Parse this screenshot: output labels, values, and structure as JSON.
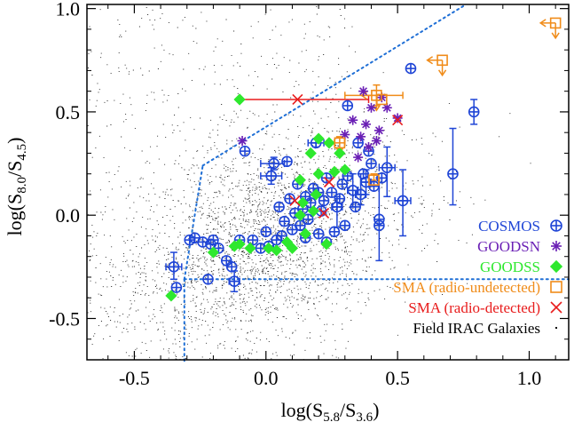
{
  "chart_data": {
    "type": "scatter",
    "title": "",
    "xlabel": {
      "pre": "log(S",
      "sub1": "5.8",
      "mid": "/S",
      "sub2": "3.6",
      "post": ")"
    },
    "ylabel": {
      "pre": "log(S",
      "sub1": "8.0",
      "mid": "/S",
      "sub2": "4.5",
      "post": ")"
    },
    "xlim": [
      -0.68,
      1.15
    ],
    "ylim": [
      -0.7,
      1.02
    ],
    "xticks": [
      {
        "v": -0.5,
        "label": "-0.5"
      },
      {
        "v": 0.0,
        "label": "0.0"
      },
      {
        "v": 0.5,
        "label": "0.5"
      },
      {
        "v": 1.0,
        "label": "1.0"
      }
    ],
    "yticks": [
      {
        "v": -0.5,
        "label": "-0.5"
      },
      {
        "v": 0.0,
        "label": "0.0"
      },
      {
        "v": 0.5,
        "label": "0.5"
      },
      {
        "v": 1.0,
        "label": "1.0"
      }
    ],
    "wedge_lines": [
      {
        "x": [
          -0.31,
          1.15
        ],
        "y": [
          -0.31,
          -0.31
        ]
      },
      {
        "x": [
          -0.31,
          -0.31
        ],
        "y": [
          -0.31,
          -0.72
        ]
      },
      {
        "x": [
          -0.31,
          -0.24
        ],
        "y": [
          -0.31,
          0.24
        ]
      },
      {
        "x": [
          -0.24,
          0.76
        ],
        "y": [
          0.24,
          1.02
        ]
      }
    ],
    "legend": {
      "position": "bottom-right",
      "entries": [
        {
          "label": "COSMOS",
          "color": "#1f45d6",
          "marker": "circle-plus"
        },
        {
          "label": "GOODSN",
          "color": "#6a1fb5",
          "marker": "asterisk"
        },
        {
          "label": "GOODSS",
          "color": "#2ee82e",
          "marker": "diamond"
        },
        {
          "label": "SMA (radio-undetected)",
          "color": "#f08c1a",
          "marker": "square"
        },
        {
          "label": "SMA (radio-detected)",
          "color": "#e81c1c",
          "marker": "x"
        },
        {
          "label": "Field IRAC Galaxies",
          "color": "#000000",
          "marker": "dot"
        }
      ]
    },
    "field_cloud": {
      "center": [
        0.0,
        -0.12
      ],
      "spread": [
        0.28,
        0.24
      ],
      "count": 3200
    },
    "series": [
      {
        "name": "COSMOS",
        "color": "#1f45d6",
        "marker": "circle-plus",
        "points": [
          [
            0.55,
            0.71
          ],
          [
            0.79,
            0.5
          ],
          [
            0.71,
            0.2
          ],
          [
            0.52,
            0.07
          ],
          [
            0.46,
            0.23
          ],
          [
            0.44,
            0.18
          ],
          [
            0.4,
            0.25
          ],
          [
            0.38,
            0.16
          ],
          [
            0.36,
            0.1
          ],
          [
            0.33,
            0.12
          ],
          [
            0.31,
            0.19
          ],
          [
            0.31,
            0.53
          ],
          [
            0.29,
            0.15
          ],
          [
            0.28,
            0.08
          ],
          [
            0.27,
            0.04
          ],
          [
            0.25,
            0.11
          ],
          [
            0.23,
            0.18
          ],
          [
            0.22,
            0.07
          ],
          [
            0.21,
            0.02
          ],
          [
            0.2,
            0.11
          ],
          [
            0.19,
            0.35
          ],
          [
            0.18,
            0.13
          ],
          [
            0.17,
            0.06
          ],
          [
            0.16,
            -0.02
          ],
          [
            0.15,
            0.09
          ],
          [
            0.14,
            0.03
          ],
          [
            0.13,
            -0.05
          ],
          [
            0.12,
            0.15
          ],
          [
            0.11,
            0.01
          ],
          [
            0.1,
            -0.07
          ],
          [
            0.09,
            0.08
          ],
          [
            0.08,
            0.26
          ],
          [
            0.07,
            -0.03
          ],
          [
            0.06,
            -0.1
          ],
          [
            0.05,
            0.04
          ],
          [
            0.04,
            -0.12
          ],
          [
            0.03,
            0.25
          ],
          [
            0.02,
            0.19
          ],
          [
            0.01,
            -0.15
          ],
          [
            0.0,
            -0.08
          ],
          [
            -0.02,
            -0.16
          ],
          [
            -0.05,
            -0.12
          ],
          [
            -0.08,
            0.31
          ],
          [
            -0.1,
            -0.12
          ],
          [
            -0.12,
            -0.32
          ],
          [
            -0.13,
            -0.25
          ],
          [
            -0.15,
            -0.22
          ],
          [
            -0.18,
            -0.16
          ],
          [
            -0.2,
            -0.12
          ],
          [
            -0.22,
            -0.31
          ],
          [
            -0.24,
            -0.13
          ],
          [
            -0.27,
            -0.11
          ],
          [
            -0.29,
            -0.12
          ],
          [
            -0.35,
            -0.25
          ],
          [
            -0.34,
            -0.35
          ],
          [
            -0.21,
            -0.14
          ],
          [
            0.37,
            0.2
          ],
          [
            0.41,
            0.14
          ],
          [
            0.43,
            -0.05
          ],
          [
            0.43,
            -0.02
          ],
          [
            0.26,
            -0.08
          ],
          [
            0.3,
            -0.05
          ],
          [
            0.34,
            0.04
          ],
          [
            0.2,
            -0.09
          ],
          [
            0.15,
            -0.11
          ],
          [
            0.23,
            -0.13
          ],
          [
            0.35,
            0.35
          ],
          [
            0.39,
            0.31
          ]
        ]
      },
      {
        "name": "GOODSN",
        "color": "#6a1fb5",
        "marker": "asterisk",
        "points": [
          [
            0.37,
            0.6
          ],
          [
            0.44,
            0.57
          ],
          [
            0.46,
            0.52
          ],
          [
            0.4,
            0.52
          ],
          [
            0.33,
            0.46
          ],
          [
            0.38,
            0.44
          ],
          [
            0.43,
            0.41
          ],
          [
            0.36,
            0.38
          ],
          [
            0.42,
            0.36
          ],
          [
            0.39,
            0.33
          ],
          [
            0.5,
            0.47
          ],
          [
            0.3,
            0.39
          ],
          [
            -0.09,
            0.36
          ],
          [
            0.35,
            0.28
          ]
        ]
      },
      {
        "name": "GOODSS",
        "color": "#2ee82e",
        "marker": "diamond",
        "points": [
          [
            -0.1,
            0.56
          ],
          [
            0.2,
            0.37
          ],
          [
            0.24,
            0.35
          ],
          [
            0.17,
            0.3
          ],
          [
            0.28,
            0.3
          ],
          [
            0.26,
            0.21
          ],
          [
            0.3,
            0.22
          ],
          [
            0.2,
            0.2
          ],
          [
            0.13,
            0.17
          ],
          [
            0.19,
            0.1
          ],
          [
            0.14,
            0.06
          ],
          [
            0.18,
            0.02
          ],
          [
            0.13,
            0.0
          ],
          [
            0.15,
            -0.09
          ],
          [
            0.08,
            -0.13
          ],
          [
            0.01,
            -0.16
          ],
          [
            0.04,
            -0.17
          ],
          [
            -0.06,
            -0.16
          ],
          [
            -0.1,
            -0.14
          ],
          [
            -0.12,
            -0.15
          ],
          [
            -0.2,
            -0.18
          ],
          [
            -0.36,
            -0.39
          ],
          [
            0.1,
            -0.16
          ],
          [
            0.23,
            -0.14
          ]
        ]
      },
      {
        "name": "SMA (radio-undetected)",
        "color": "#f08c1a",
        "marker": "square",
        "points": [
          [
            1.1,
            0.93
          ],
          [
            0.67,
            0.75
          ],
          [
            0.42,
            0.58
          ],
          [
            0.44,
            0.56
          ],
          [
            0.28,
            0.35
          ],
          [
            0.41,
            0.17
          ]
        ]
      },
      {
        "name": "SMA (radio-detected)",
        "color": "#e81c1c",
        "marker": "x",
        "points": [
          [
            0.12,
            0.56
          ],
          [
            0.5,
            0.46
          ],
          [
            0.11,
            0.07
          ],
          [
            0.22,
            0.01
          ],
          [
            0.24,
            0.16
          ]
        ]
      }
    ],
    "error_bars": [
      {
        "x": 0.12,
        "y": 0.56,
        "xerr": [
          0.22,
          0.27
        ],
        "yerr": [
          0,
          0
        ],
        "color": "#e81c1c"
      },
      {
        "x": 0.42,
        "y": 0.58,
        "xerr": [
          0.12,
          0.1
        ],
        "yerr": [
          0.05,
          0.05
        ],
        "color": "#f08c1a"
      },
      {
        "x": 0.79,
        "y": 0.5,
        "xerr": [
          0,
          0
        ],
        "yerr": [
          0.06,
          0.06
        ],
        "color": "#1f45d6"
      },
      {
        "x": 0.71,
        "y": 0.2,
        "xerr": [
          0,
          0
        ],
        "yerr": [
          0.15,
          0.22
        ],
        "color": "#1f45d6"
      },
      {
        "x": 0.52,
        "y": 0.07,
        "xerr": [
          0.03,
          0.03
        ],
        "yerr": [
          0.17,
          0.15
        ],
        "color": "#1f45d6"
      },
      {
        "x": 0.46,
        "y": 0.23,
        "xerr": [
          0.03,
          0.03
        ],
        "yerr": [
          0.14,
          0.1
        ],
        "color": "#1f45d6"
      },
      {
        "x": 0.43,
        "y": -0.05,
        "xerr": [
          0,
          0
        ],
        "yerr": [
          0.17,
          0.23
        ],
        "color": "#1f45d6"
      },
      {
        "x": -0.35,
        "y": -0.25,
        "xerr": [
          0.03,
          0.03
        ],
        "yerr": [
          0.06,
          0.07
        ],
        "color": "#1f45d6"
      },
      {
        "x": -0.12,
        "y": -0.32,
        "xerr": [
          0.02,
          0.02
        ],
        "yerr": [
          0.05,
          0.05
        ],
        "color": "#1f45d6"
      },
      {
        "x": 0.03,
        "y": 0.25,
        "xerr": [
          0.05,
          0.04
        ],
        "yerr": [
          0.03,
          0.03
        ],
        "color": "#1f45d6"
      },
      {
        "x": 0.02,
        "y": 0.19,
        "xerr": [
          0.04,
          0.04
        ],
        "yerr": [
          0.04,
          0.04
        ],
        "color": "#1f45d6"
      },
      {
        "x": 0.19,
        "y": 0.35,
        "xerr": [
          0.03,
          0.03
        ],
        "yerr": [
          0.02,
          0.02
        ],
        "color": "#1f45d6"
      },
      {
        "x": 0.38,
        "y": 0.16,
        "xerr": [
          0.02,
          0.02
        ],
        "yerr": [
          0.06,
          0.06
        ],
        "color": "#1f45d6"
      },
      {
        "x": 0.27,
        "y": 0.04,
        "xerr": [
          0.02,
          0.02
        ],
        "yerr": [
          0.1,
          0.05
        ],
        "color": "#1f45d6"
      },
      {
        "x": 0.33,
        "y": 0.12,
        "xerr": [
          0.02,
          0.02
        ],
        "yerr": [
          0.08,
          0.08
        ],
        "color": "#1f45d6"
      },
      {
        "x": 0.36,
        "y": 0.1,
        "xerr": [
          0.02,
          0.02
        ],
        "yerr": [
          0.05,
          0.1
        ],
        "color": "#1f45d6"
      },
      {
        "x": 0.41,
        "y": 0.17,
        "xerr": [
          0.02,
          0.02
        ],
        "yerr": [
          0.03,
          0.03
        ],
        "color": "#f08c1a"
      },
      {
        "x": 0.28,
        "y": 0.35,
        "xerr": [
          0.02,
          0.02
        ],
        "yerr": [
          0.03,
          0.03
        ],
        "color": "#f08c1a"
      }
    ],
    "upper_limits": [
      {
        "x": 1.1,
        "y": 0.93,
        "color": "#f08c1a"
      },
      {
        "x": 0.67,
        "y": 0.75,
        "color": "#f08c1a"
      },
      {
        "x": 0.42,
        "y": 0.58,
        "color": "#f08c1a"
      }
    ]
  }
}
